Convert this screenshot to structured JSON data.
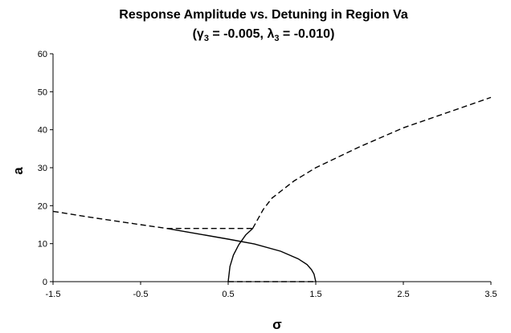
{
  "chart_data": {
    "type": "line",
    "title": "Response Amplitude vs. Detuning in Region Va",
    "subtitle_parts": {
      "open": "(",
      "g_sym": "γ",
      "g_sub": "3",
      "g_val": " = -0.005, ",
      "l_sym": "λ",
      "l_sub": "3",
      "l_val": " = -0.010)"
    },
    "xlabel": "σ",
    "ylabel": "a",
    "xlim": [
      -1.5,
      3.5
    ],
    "ylim": [
      0,
      60
    ],
    "xticks": [
      -1.5,
      -0.5,
      0.5,
      1.5,
      2.5,
      3.5
    ],
    "xtick_labels": [
      "-1.5",
      "-0.5",
      "0.5",
      "1.5",
      "2.5",
      "3.5"
    ],
    "yticks": [
      0,
      10,
      20,
      30,
      40,
      50,
      60
    ],
    "ytick_labels": [
      "0",
      "10",
      "20",
      "30",
      "40",
      "50",
      "60"
    ],
    "grid": false,
    "legend": "none",
    "series": [
      {
        "style": "dashed",
        "x": [
          -1.5,
          -1.0,
          -0.5,
          -0.2
        ],
        "y": [
          18.5,
          16.7,
          15.0,
          14.0
        ]
      },
      {
        "style": "solid",
        "x": [
          -0.2,
          0.2,
          0.5,
          0.8,
          1.1,
          1.3,
          1.4,
          1.45,
          1.48,
          1.5
        ],
        "y": [
          14.0,
          12.4,
          11.2,
          9.9,
          8.0,
          6.0,
          4.5,
          3.2,
          2.0,
          0.0
        ]
      },
      {
        "style": "dashed",
        "x": [
          -0.2,
          0.78
        ],
        "y": [
          14.0,
          14.0
        ]
      },
      {
        "style": "solid",
        "x": [
          0.5,
          0.52,
          0.56,
          0.62,
          0.7,
          0.78
        ],
        "y": [
          0.0,
          4.0,
          7.0,
          9.7,
          12.3,
          14.0
        ]
      },
      {
        "style": "dashed",
        "x": [
          0.78,
          0.9,
          1.0,
          1.25,
          1.5,
          2.0,
          2.5,
          3.0,
          3.5
        ],
        "y": [
          14.0,
          19.0,
          22.0,
          26.5,
          30.0,
          35.5,
          40.5,
          44.5,
          48.5
        ]
      },
      {
        "style": "dashed",
        "x": [
          0.5,
          1.5
        ],
        "y": [
          0.0,
          0.0
        ]
      }
    ]
  }
}
